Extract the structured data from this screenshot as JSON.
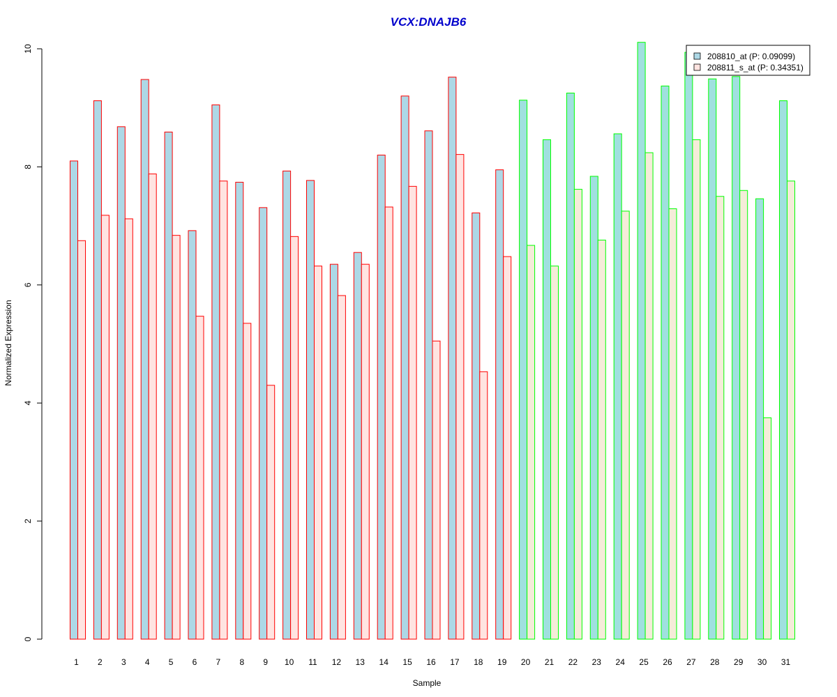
{
  "chart_data": {
    "type": "bar",
    "title": "VCX:DNAJB6",
    "xlabel": "Sample",
    "ylabel": "Normalized Expression",
    "ylim": [
      0,
      10
    ],
    "yticks": [
      "0",
      "2",
      "4",
      "6",
      "8",
      "10"
    ],
    "grid": false,
    "legend_position": "top-right",
    "categories": [
      "1",
      "2",
      "3",
      "4",
      "5",
      "6",
      "7",
      "8",
      "9",
      "10",
      "11",
      "12",
      "13",
      "14",
      "15",
      "16",
      "17",
      "18",
      "19",
      "20",
      "21",
      "22",
      "23",
      "24",
      "25",
      "26",
      "27",
      "28",
      "29",
      "30",
      "31"
    ],
    "series": [
      {
        "name": "208810_at (P: 0.09099)",
        "values": [
          8.1,
          9.12,
          8.68,
          9.48,
          8.59,
          6.92,
          9.05,
          7.74,
          7.31,
          7.93,
          7.77,
          6.35,
          6.55,
          8.2,
          9.2,
          8.61,
          9.52,
          7.22,
          7.95,
          9.13,
          8.46,
          9.25,
          7.84,
          8.56,
          10.11,
          9.37,
          9.94,
          9.49,
          9.53,
          7.46,
          9.12
        ]
      },
      {
        "name": "208811_s_at (P: 0.34351)",
        "values": [
          6.75,
          7.18,
          7.12,
          7.88,
          6.84,
          5.47,
          7.76,
          5.35,
          4.3,
          6.82,
          6.32,
          5.82,
          6.35,
          7.32,
          7.67,
          5.05,
          8.21,
          4.53,
          6.48,
          6.67,
          6.32,
          7.62,
          6.76,
          7.25,
          8.24,
          7.29,
          8.46,
          7.5,
          7.6,
          3.75,
          7.76
        ]
      }
    ],
    "groups": [
      {
        "samples": "1-19",
        "outline": "#ff0000",
        "fills": [
          "#add8e6",
          "#ffe4e1"
        ]
      },
      {
        "samples": "20-31",
        "outline": "#00ff00",
        "fills": [
          "#a0e0df",
          "#f5ecd9"
        ]
      }
    ],
    "colors": {
      "title": "#0000cc",
      "axis": "#000000"
    }
  }
}
